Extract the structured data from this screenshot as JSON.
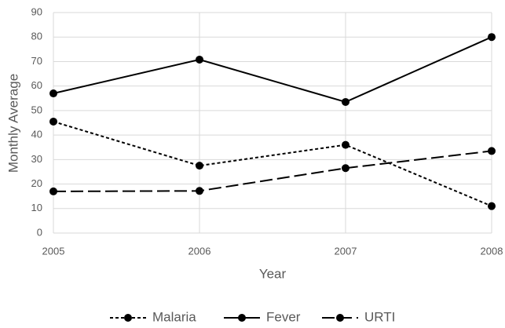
{
  "chart_data": {
    "type": "line",
    "xlabel": "Year",
    "ylabel": "Monthly Average",
    "x": [
      2005,
      2006,
      2007,
      2008
    ],
    "xlim": [
      2005,
      2008
    ],
    "xticks": [
      2005,
      2006,
      2007,
      2008
    ],
    "ylim": [
      0,
      90
    ],
    "yticks": [
      0,
      10,
      20,
      30,
      40,
      50,
      60,
      70,
      80,
      90
    ],
    "grid": true,
    "legend": "bottom",
    "series": [
      {
        "name": "Malaria",
        "color": "#000000",
        "linestyle": "dotted",
        "values": [
          45.5,
          27.5,
          36,
          11
        ]
      },
      {
        "name": "Fever",
        "color": "#000000",
        "linestyle": "solid",
        "values": [
          57,
          70.8,
          53.5,
          80
        ]
      },
      {
        "name": "URTI",
        "color": "#000000",
        "linestyle": "dashed",
        "values": [
          17,
          17.2,
          26.5,
          33.5
        ]
      }
    ]
  }
}
